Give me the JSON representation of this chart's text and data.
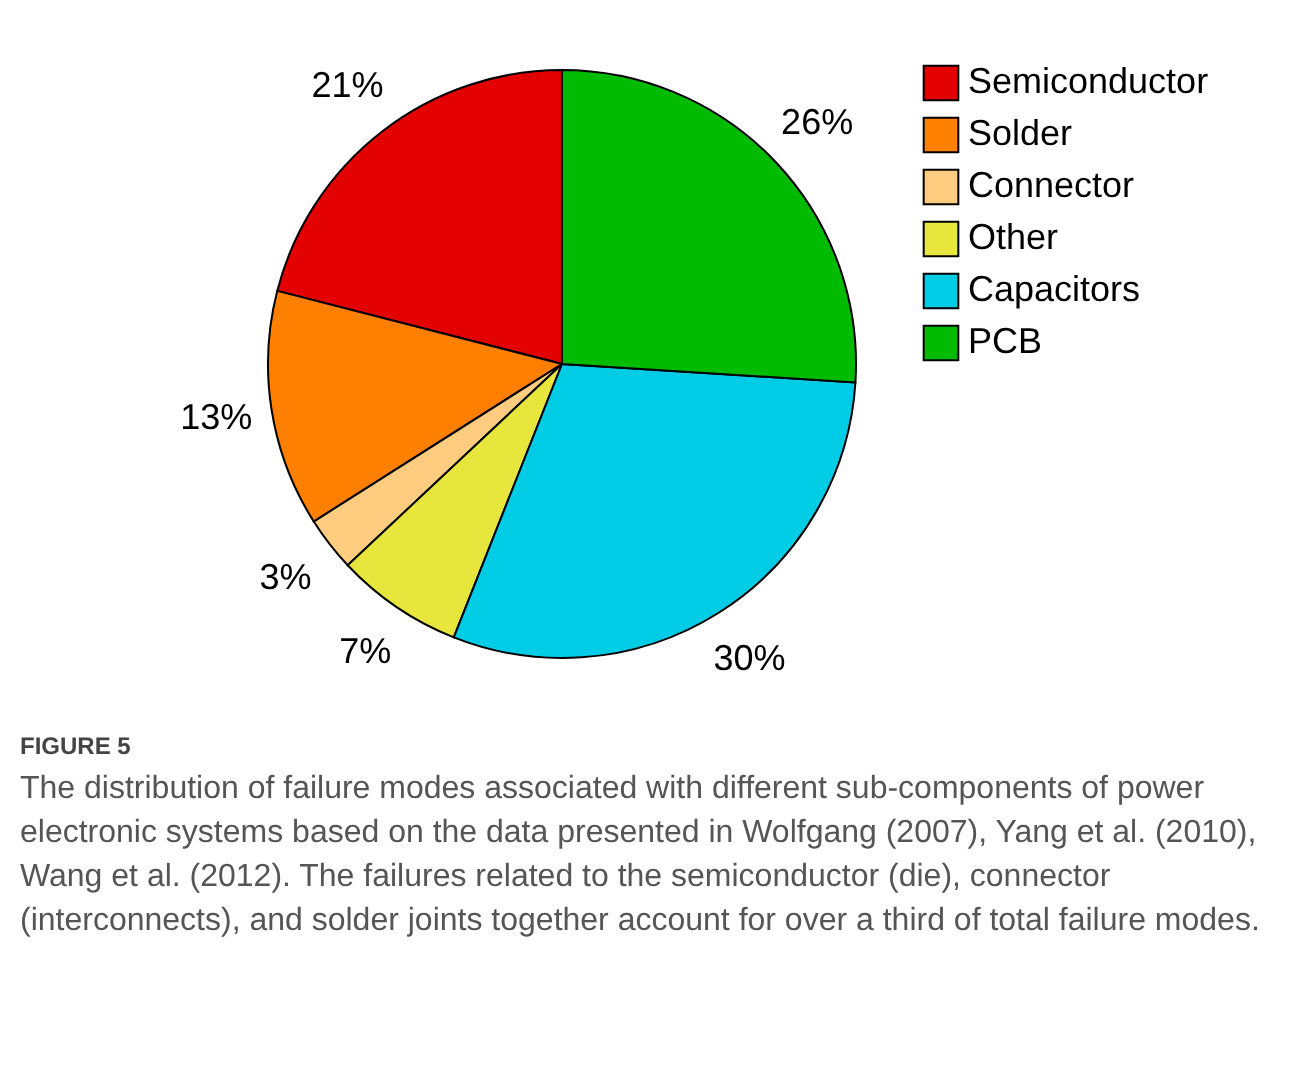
{
  "chart_data": {
    "type": "pie",
    "categories": [
      "Semiconductor",
      "Solder",
      "Connector",
      "Other",
      "Capacitors",
      "PCB"
    ],
    "values": [
      21,
      13,
      3,
      7,
      30,
      26
    ],
    "value_labels": [
      "21%",
      "13%",
      "3%",
      "7%",
      "30%",
      "26%"
    ],
    "colors": [
      "#e30000",
      "#ff8000",
      "#ffcc80",
      "#e6e63c",
      "#00cce6",
      "#00bb00"
    ],
    "legend": "right",
    "annotations": [
      "FIGURE 5",
      "The distribution of failure modes associated with different sub-components of power electronic systems based on the data presented in Wolfgang (2007), Yang et al. (2010), Wang et al. (2012). The failures related to the semiconductor (die), connector (interconnects), and solder joints together account for over a third of total failure modes."
    ]
  }
}
